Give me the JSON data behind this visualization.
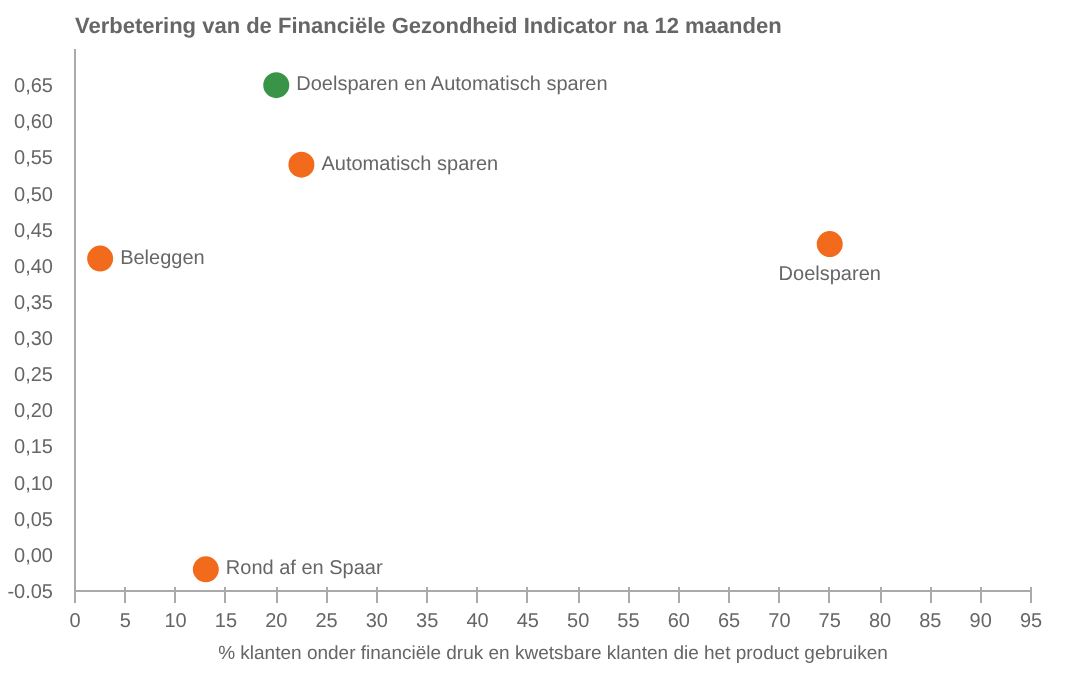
{
  "chart_data": {
    "type": "scatter",
    "title": "Verbetering van de Financiële Gezondheid Indicator na 12 maanden",
    "xlabel": "% klanten onder financiële druk en kwetsbare klanten die het product gebruiken",
    "series": [
      {
        "name": "Doelsparen en Automatisch sparen",
        "color": "#3a9447",
        "x": [
          20
        ],
        "values": [
          0.65
        ]
      },
      {
        "name": "Automatisch sparen",
        "color": "#f26a1b",
        "x": [
          22.5
        ],
        "values": [
          0.54
        ]
      },
      {
        "name": "Beleggen",
        "color": "#f26a1b",
        "x": [
          2.5
        ],
        "values": [
          0.41
        ]
      },
      {
        "name": "Doelsparen",
        "color": "#f26a1b",
        "x": [
          75
        ],
        "values": [
          0.43
        ]
      },
      {
        "name": "Rond af en Spaar",
        "color": "#f26a1b",
        "x": [
          13
        ],
        "values": [
          -0.02
        ]
      }
    ],
    "xlim": [
      0,
      95
    ],
    "xticks": [
      0,
      5,
      10,
      15,
      20,
      25,
      30,
      35,
      40,
      45,
      50,
      55,
      60,
      65,
      70,
      75,
      80,
      85,
      90,
      95
    ],
    "ylim": [
      -0.05,
      0.7
    ],
    "yticks": [
      {
        "value": -0.05,
        "label": "-0.05"
      },
      {
        "value": 0,
        "label": "0,00"
      },
      {
        "value": 0.05,
        "label": "0,05"
      },
      {
        "value": 0.1,
        "label": "0,10"
      },
      {
        "value": 0.15,
        "label": "0,15"
      },
      {
        "value": 0.2,
        "label": "0,20"
      },
      {
        "value": 0.25,
        "label": "0,25"
      },
      {
        "value": 0.3,
        "label": "0,30"
      },
      {
        "value": 0.35,
        "label": "0,35"
      },
      {
        "value": 0.4,
        "label": "0,40"
      },
      {
        "value": 0.45,
        "label": "0,45"
      },
      {
        "value": 0.5,
        "label": "0,50"
      },
      {
        "value": 0.55,
        "label": "0,55"
      },
      {
        "value": 0.6,
        "label": "0,60"
      },
      {
        "value": 0.65,
        "label": "0,65"
      }
    ],
    "grid": false,
    "legend": false,
    "marker": "circle"
  }
}
